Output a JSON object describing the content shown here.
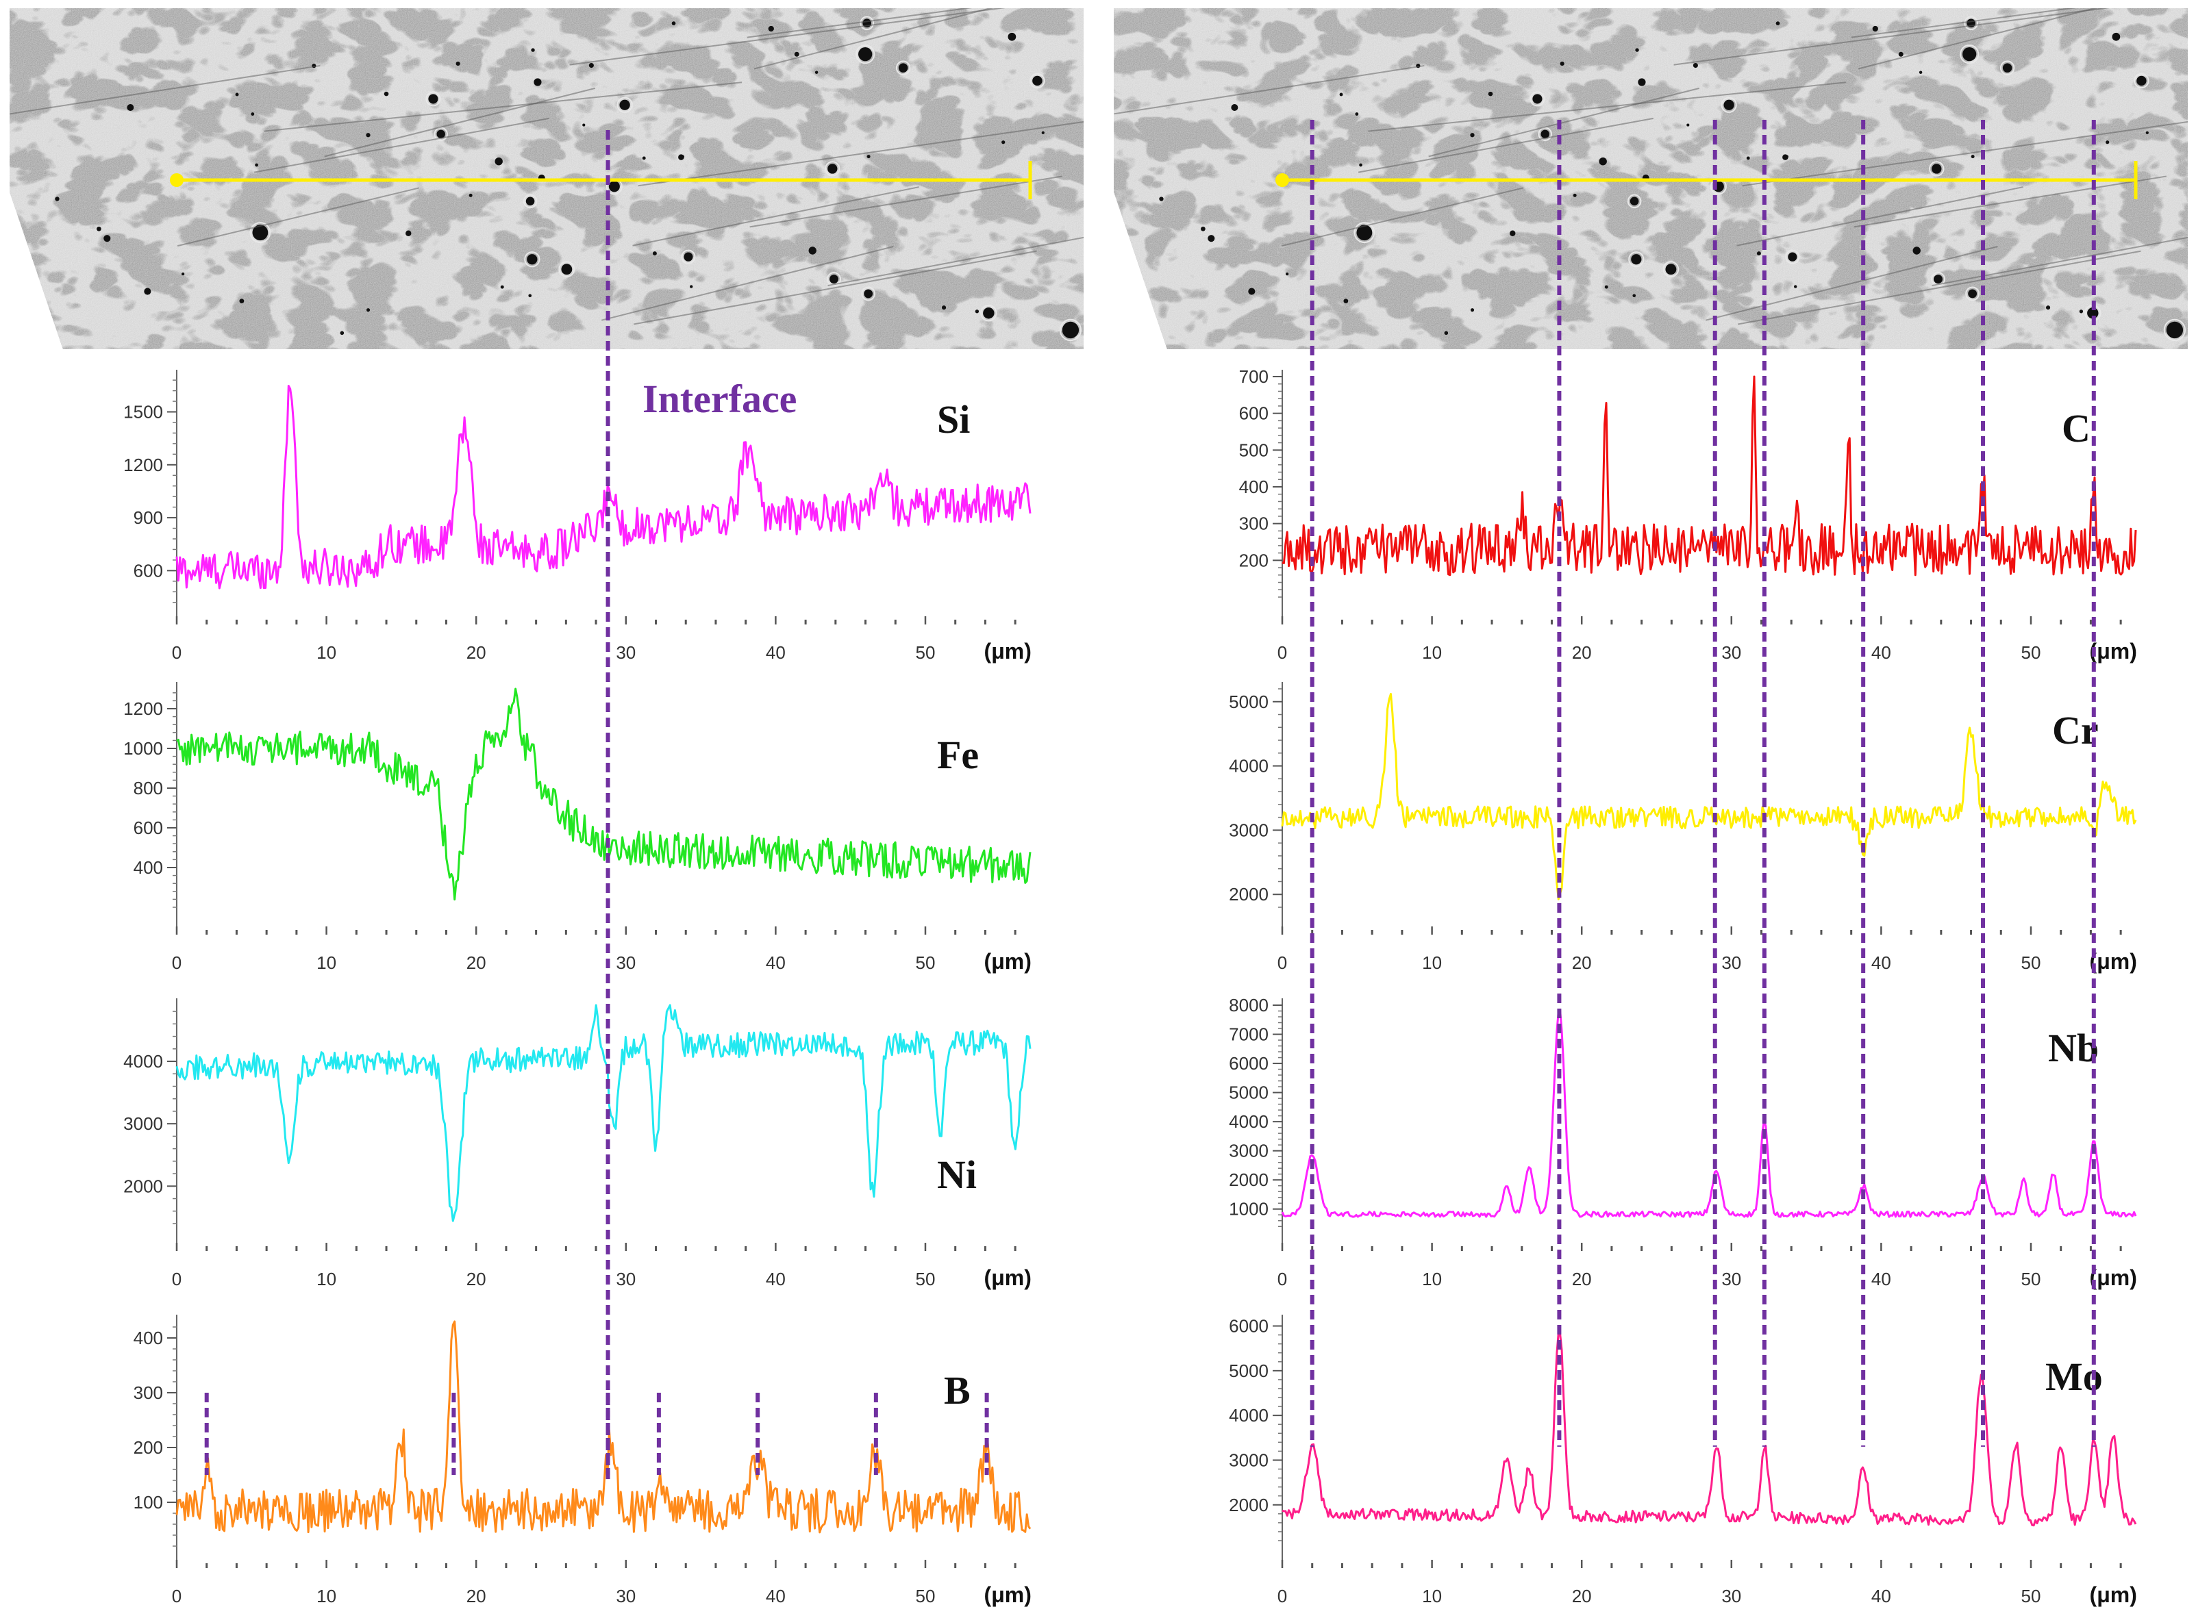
{
  "colors": {
    "Si": "#ff22ff",
    "Fe": "#22e622",
    "Ni": "#22e8f0",
    "B": "#ff8a1a",
    "C": "#f01010",
    "Cr": "#ffee00",
    "Nb": "#ff22ff",
    "Mo": "#ff1e8a",
    "guide": "#7030a0",
    "scanline": "#ffee00"
  },
  "interface_label": "Interface",
  "unit_label": "(μm)",
  "sem_images": [
    {
      "panel": "left",
      "scan_from_um": 0,
      "scan_to_um": 57
    },
    {
      "panel": "right",
      "scan_from_um": 0,
      "scan_to_um": 57
    }
  ],
  "guides": {
    "interface_um": 28.8,
    "right_panel_um": [
      2,
      18.5,
      28.9,
      32.2,
      38.8,
      46.8,
      54.2
    ],
    "B_marker_um": [
      2,
      18.5,
      28.8,
      32.2,
      38.8,
      46.7,
      54.1
    ]
  },
  "chart_data": [
    {
      "type": "line",
      "panel": "left",
      "element": "Si",
      "series": [
        {
          "name": "Si"
        }
      ],
      "xlim": [
        0,
        57
      ],
      "ylim": [
        450,
        1700
      ],
      "yticks": [
        600,
        900,
        1200,
        1500
      ],
      "xticks": [
        0,
        10,
        20,
        30,
        40,
        50
      ],
      "xlabel": "(μm)",
      "ylabel": "",
      "baseline": 600,
      "noise": 110,
      "trend": [
        [
          0,
          600
        ],
        [
          13,
          620
        ],
        [
          14,
          760
        ],
        [
          25,
          700
        ],
        [
          28,
          840
        ],
        [
          57,
          1000
        ]
      ],
      "peaks": [
        [
          7.6,
          1700,
          0.3
        ],
        [
          19.2,
          1420,
          0.45
        ],
        [
          28.9,
          1070,
          0.3
        ],
        [
          38.2,
          1300,
          0.5
        ],
        [
          47.1,
          1110,
          0.5
        ]
      ],
      "dips": []
    },
    {
      "type": "line",
      "panel": "left",
      "element": "Fe",
      "series": [
        {
          "name": "Fe"
        }
      ],
      "xlim": [
        0,
        57
      ],
      "ylim": [
        200,
        1300
      ],
      "yticks": [
        400,
        600,
        800,
        1000,
        1200
      ],
      "xticks": [
        0,
        10,
        20,
        30,
        40,
        50
      ],
      "xlabel": "(μm)",
      "ylabel": "",
      "baseline": 1000,
      "noise": 90,
      "trend": [
        [
          0,
          1000
        ],
        [
          13,
          1000
        ],
        [
          14.5,
          890
        ],
        [
          17.5,
          780
        ],
        [
          18.5,
          420
        ],
        [
          19.5,
          800
        ],
        [
          20.5,
          1000
        ],
        [
          23.5,
          1000
        ],
        [
          24.5,
          800
        ],
        [
          26.5,
          620
        ],
        [
          28.8,
          500
        ],
        [
          40,
          470
        ],
        [
          57,
          400
        ]
      ],
      "peaks": [
        [
          22.5,
          1260,
          0.35
        ]
      ],
      "dips": [
        [
          18.5,
          320,
          0.4
        ]
      ]
    },
    {
      "type": "line",
      "panel": "left",
      "element": "Ni",
      "series": [
        {
          "name": "Ni"
        }
      ],
      "xlim": [
        0,
        57
      ],
      "ylim": [
        1400,
        4900
      ],
      "yticks": [
        2000,
        3000,
        4000
      ],
      "xticks": [
        0,
        10,
        20,
        30,
        40,
        50
      ],
      "xlabel": "(μm)",
      "ylabel": "",
      "baseline": 3900,
      "noise": 200,
      "trend": [
        [
          0,
          3900
        ],
        [
          27,
          4050
        ],
        [
          28.8,
          4250
        ],
        [
          57,
          4300
        ]
      ],
      "peaks": [
        [
          28,
          4900,
          0.2
        ],
        [
          33,
          4900,
          0.3
        ]
      ],
      "dips": [
        [
          7.5,
          2500,
          0.35
        ],
        [
          18.5,
          1450,
          0.45
        ],
        [
          29.2,
          2900,
          0.3
        ],
        [
          32,
          2600,
          0.25
        ],
        [
          46.5,
          1900,
          0.35
        ],
        [
          51,
          2800,
          0.25
        ],
        [
          56,
          2500,
          0.3
        ]
      ]
    },
    {
      "type": "line",
      "panel": "left",
      "element": "B",
      "series": [
        {
          "name": "B"
        }
      ],
      "xlim": [
        0,
        57
      ],
      "ylim": [
        30,
        430
      ],
      "yticks": [
        100,
        200,
        300,
        400
      ],
      "xticks": [
        0,
        10,
        20,
        30,
        40,
        50
      ],
      "xlabel": "(μm)",
      "ylabel": "",
      "baseline": 85,
      "noise": 40,
      "trend": [],
      "peaks": [
        [
          2,
          160,
          0.3
        ],
        [
          15,
          225,
          0.25
        ],
        [
          18.5,
          420,
          0.3
        ],
        [
          29,
          205,
          0.3
        ],
        [
          32.2,
          140,
          0.25
        ],
        [
          38.8,
          180,
          0.45
        ],
        [
          46.6,
          200,
          0.35
        ],
        [
          54.1,
          190,
          0.35
        ]
      ],
      "dips": []
    },
    {
      "type": "line",
      "panel": "right",
      "element": "C",
      "series": [
        {
          "name": "C"
        }
      ],
      "xlim": [
        0,
        57
      ],
      "ylim": [
        100,
        700
      ],
      "yticks": [
        200,
        300,
        400,
        500,
        600,
        700
      ],
      "xticks": [
        0,
        10,
        20,
        30,
        40,
        50
      ],
      "xlabel": "(μm)",
      "ylabel": "",
      "baseline": 230,
      "noise": 70,
      "trend": [],
      "peaks": [
        [
          16,
          360,
          0.15
        ],
        [
          18.5,
          380,
          0.25
        ],
        [
          21.6,
          650,
          0.12
        ],
        [
          31.5,
          700,
          0.1
        ],
        [
          34.3,
          360,
          0.12
        ],
        [
          37.8,
          550,
          0.12
        ],
        [
          46.8,
          380,
          0.2
        ],
        [
          54.2,
          400,
          0.15
        ]
      ],
      "dips": []
    },
    {
      "type": "line",
      "panel": "right",
      "element": "Cr",
      "series": [
        {
          "name": "Cr"
        }
      ],
      "xlim": [
        0,
        57
      ],
      "ylim": [
        1800,
        5200
      ],
      "yticks": [
        2000,
        3000,
        4000,
        5000
      ],
      "xticks": [
        0,
        10,
        20,
        30,
        40,
        50
      ],
      "xlabel": "(μm)",
      "ylabel": "",
      "baseline": 3200,
      "noise": 170,
      "trend": [],
      "peaks": [
        [
          7.2,
          5100,
          0.3
        ],
        [
          46,
          4500,
          0.35
        ],
        [
          55,
          3800,
          0.4
        ]
      ],
      "dips": [
        [
          18.5,
          1950,
          0.25
        ],
        [
          38.8,
          2750,
          0.3
        ],
        [
          54.2,
          2850,
          0.3
        ]
      ]
    },
    {
      "type": "line",
      "panel": "right",
      "element": "Nb",
      "series": [
        {
          "name": "Nb"
        }
      ],
      "xlim": [
        0,
        57
      ],
      "ylim": [
        500,
        8000
      ],
      "yticks": [
        1000,
        2000,
        3000,
        4000,
        5000,
        6000,
        7000,
        8000
      ],
      "xticks": [
        0,
        10,
        20,
        30,
        40,
        50
      ],
      "xlabel": "(μm)",
      "ylabel": "",
      "baseline": 820,
      "noise": 90,
      "trend": [],
      "peaks": [
        [
          2,
          2900,
          0.4
        ],
        [
          15,
          1800,
          0.25
        ],
        [
          16.5,
          2400,
          0.3
        ],
        [
          18.5,
          7900,
          0.35
        ],
        [
          29,
          2300,
          0.3
        ],
        [
          32.2,
          4000,
          0.25
        ],
        [
          38.8,
          1800,
          0.3
        ],
        [
          46.8,
          2100,
          0.35
        ],
        [
          49.5,
          2000,
          0.25
        ],
        [
          51.5,
          2200,
          0.25
        ],
        [
          54.2,
          3300,
          0.3
        ]
      ],
      "dips": []
    },
    {
      "type": "line",
      "panel": "right",
      "element": "Mo",
      "series": [
        {
          "name": "Mo"
        }
      ],
      "xlim": [
        0,
        57
      ],
      "ylim": [
        1200,
        6100
      ],
      "yticks": [
        2000,
        3000,
        4000,
        5000,
        6000
      ],
      "xticks": [
        0,
        10,
        20,
        30,
        40,
        50
      ],
      "xlabel": "(μm)",
      "ylabel": "",
      "baseline": 1700,
      "noise": 130,
      "trend": [
        [
          0,
          1800
        ],
        [
          57,
          1650
        ]
      ],
      "peaks": [
        [
          2,
          3300,
          0.4
        ],
        [
          15,
          3000,
          0.35
        ],
        [
          16.5,
          2800,
          0.3
        ],
        [
          18.5,
          6000,
          0.3
        ],
        [
          29,
          3300,
          0.3
        ],
        [
          32.2,
          3300,
          0.25
        ],
        [
          38.8,
          2800,
          0.3
        ],
        [
          46.7,
          5000,
          0.35
        ],
        [
          49,
          3400,
          0.3
        ],
        [
          52,
          3300,
          0.3
        ],
        [
          54.2,
          3400,
          0.3
        ],
        [
          55.5,
          3500,
          0.3
        ]
      ],
      "dips": []
    }
  ]
}
